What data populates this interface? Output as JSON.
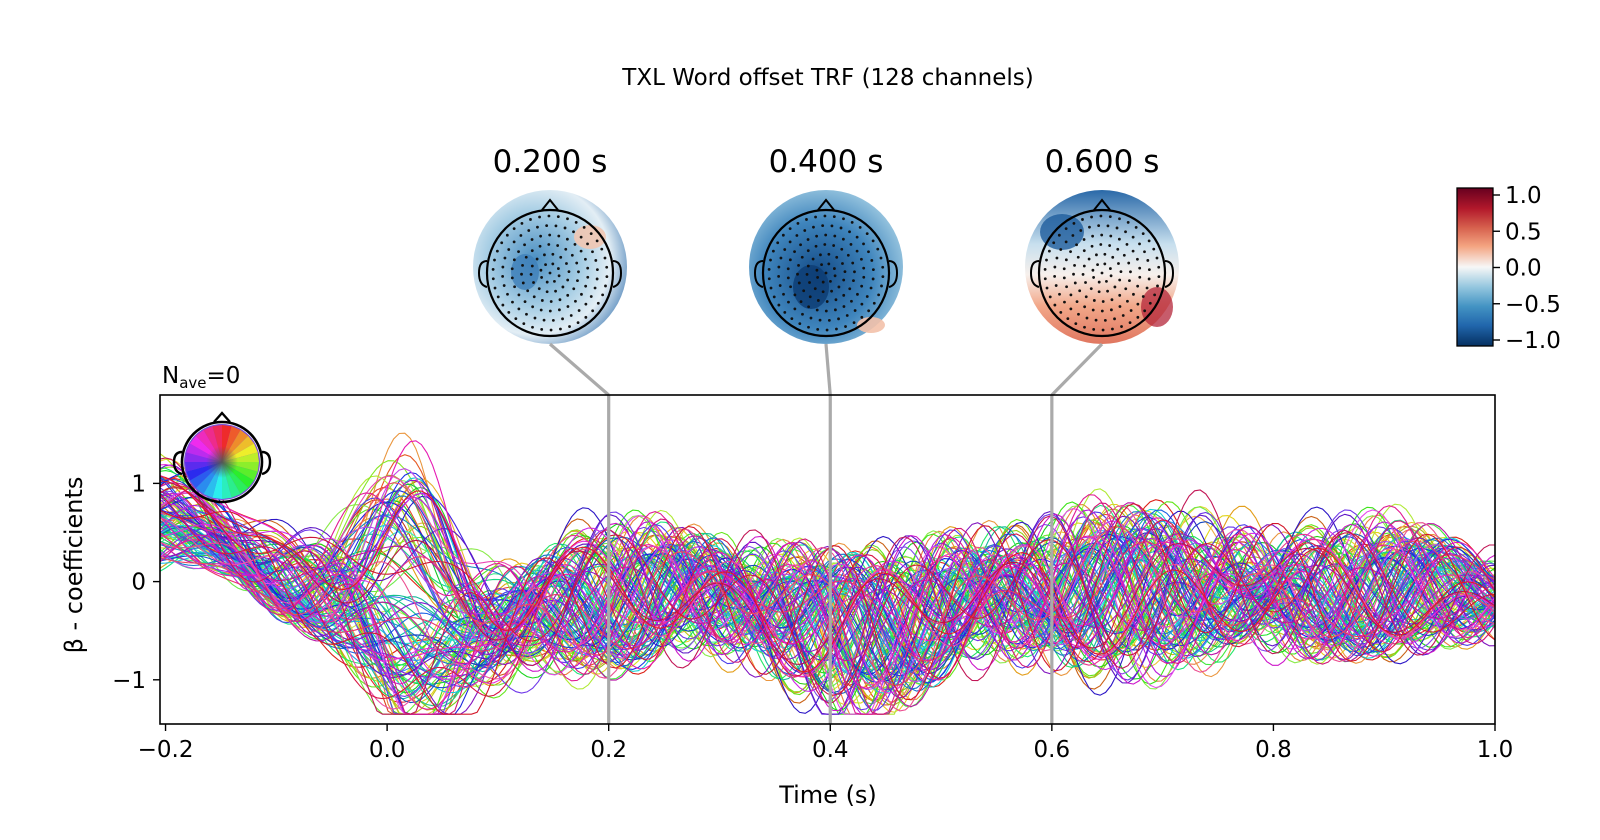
{
  "chart_data": {
    "type": "line",
    "title": "TXL Word offset TRF (128 channels)",
    "subtitle_main": "N",
    "subtitle_sub": "ave",
    "subtitle_value": "=0",
    "xlabel": "Time (s)",
    "ylabel": "β - coefficients",
    "xlim": [
      -0.205,
      1.0
    ],
    "ylim": [
      -1.45,
      1.9
    ],
    "xticks": [
      -0.2,
      0.0,
      0.2,
      0.4,
      0.6,
      0.8,
      1.0
    ],
    "xtick_labels": [
      "−0.2",
      "0.0",
      "0.2",
      "0.4",
      "0.6",
      "0.8",
      "1.0"
    ],
    "yticks": [
      1,
      0,
      -1
    ],
    "ytick_labels": [
      "1",
      "0",
      "−1"
    ],
    "n_channels": 128,
    "series_note": "128 overlapping channel traces, colored by sensor position (spatial color legend)",
    "grid": false,
    "legend": "top-left (head-shaped spatial color legend)",
    "topomap_times": [
      0.2,
      0.4,
      0.6
    ],
    "topomap_labels": [
      "0.200 s",
      "0.400 s",
      "0.600 s"
    ],
    "colorbar": {
      "cmap": "RdBu_r",
      "range": [
        -1.0,
        1.0
      ],
      "tick_values": [
        1.0,
        0.5,
        0.0,
        -0.5,
        -1.0
      ],
      "tick_labels": [
        "1.0",
        "0.5",
        "0.0",
        "−0.5",
        "−1.0"
      ]
    },
    "colors": {
      "marker_line": "#aaaaaa",
      "cmap_top": "#67001f",
      "cmap_mid": "#f7f7f7",
      "cmap_bottom": "#053061"
    }
  }
}
